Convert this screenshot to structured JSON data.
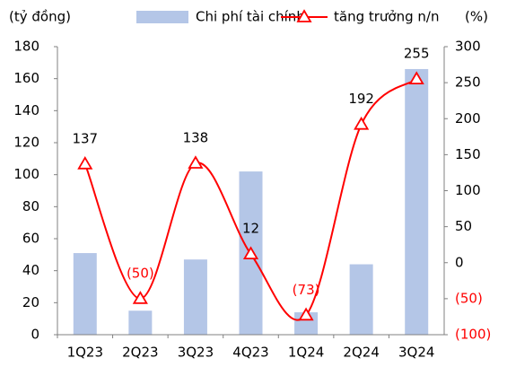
{
  "chart_data": {
    "type": "bar-line",
    "y_label": "(tỷ đồng)",
    "y2_label": "(%)",
    "categories": [
      "1Q23",
      "2Q23",
      "3Q23",
      "4Q23",
      "1Q24",
      "2Q24",
      "3Q24"
    ],
    "series": [
      {
        "name": "Chi phí tài chính",
        "type": "bar",
        "color": "#b4c6e7",
        "values": [
          51,
          15,
          47,
          102,
          14,
          44,
          166
        ]
      },
      {
        "name": "tăng trưởng n/n",
        "type": "line",
        "axis": "y2",
        "color": "#ff0000",
        "smooth": true,
        "marker": "triangle",
        "values": [
          137,
          -50,
          138,
          12,
          -73,
          192,
          255
        ],
        "value_labels": [
          "137",
          "(50)",
          "138",
          "12",
          "(73)",
          "192",
          "255"
        ]
      }
    ],
    "ylim": [
      0,
      180
    ],
    "yticks": [
      0,
      20,
      40,
      60,
      80,
      100,
      120,
      140,
      160,
      180
    ],
    "y2lim": [
      -100,
      300
    ],
    "y2ticks": [
      {
        "value": -100,
        "label": "(100)"
      },
      {
        "value": -50,
        "label": "(50)"
      },
      0,
      50,
      100,
      150,
      200,
      250,
      300
    ],
    "negative_color": "#ff0000",
    "legend": "top",
    "grid": false
  }
}
